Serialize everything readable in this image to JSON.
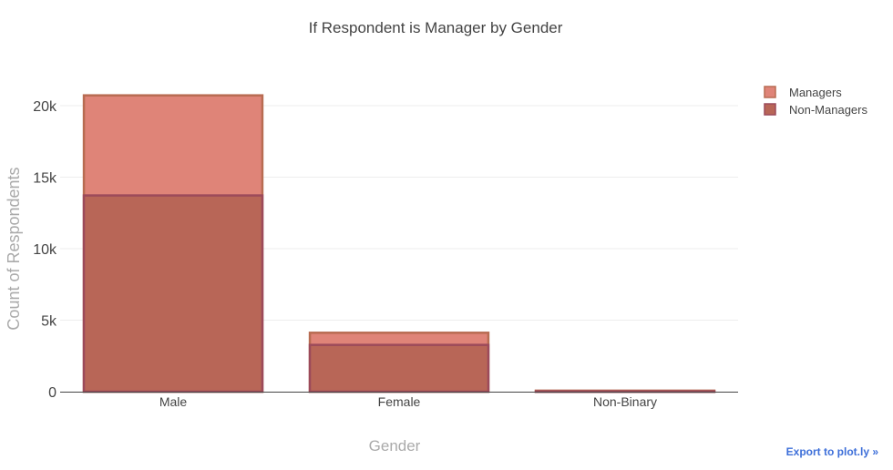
{
  "chart_data": {
    "type": "bar",
    "barmode": "overlay",
    "title": "If Respondent is Manager by Gender",
    "xlabel": "Gender",
    "ylabel": "Count of Respondents",
    "categories": [
      "Male",
      "Female",
      "Non-Binary"
    ],
    "ylim": [
      0,
      22000
    ],
    "yticks": [
      0,
      5000,
      10000,
      15000,
      20000
    ],
    "ytick_labels": [
      "0",
      "5k",
      "10k",
      "15k",
      "20k"
    ],
    "grid": true,
    "legend_position": "top-right",
    "series": [
      {
        "name": "Managers",
        "values": [
          20800,
          4200,
          150
        ],
        "color": "#df8478",
        "border": "#b86c52"
      },
      {
        "name": "Non-Managers",
        "values": [
          13800,
          3350,
          100
        ],
        "color": "#b86657",
        "border": "#9c4a5a"
      }
    ]
  },
  "export_link": "Export to plot.ly »"
}
